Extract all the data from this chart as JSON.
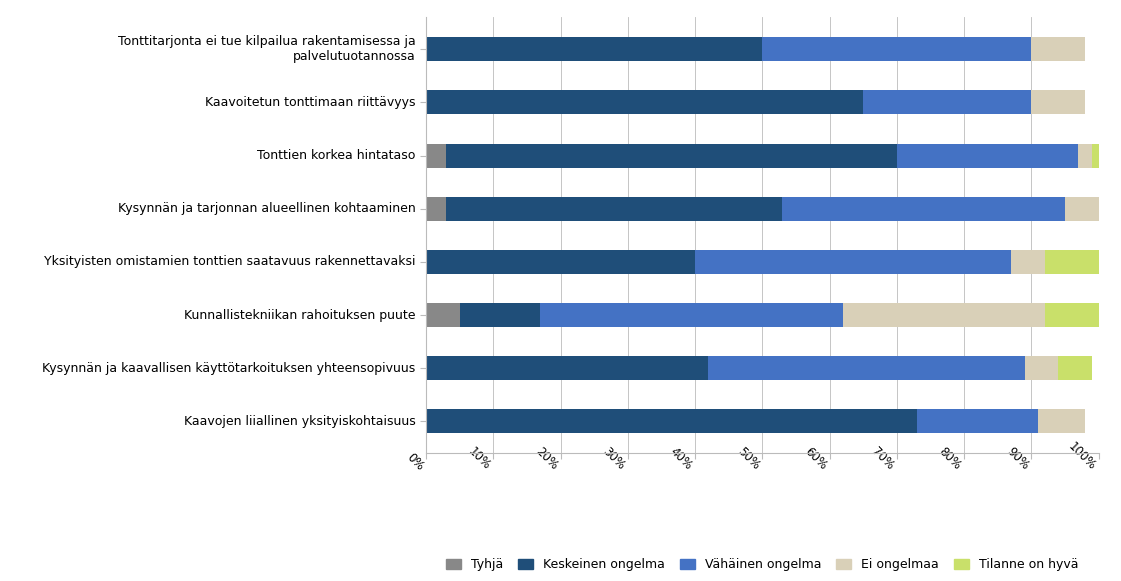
{
  "categories": [
    "Tonttitarjonta ei tue kilpailua rakentamisessa ja\npalvelutuotannossa",
    "Kaavoitetun tonttimaan riittävyys",
    "Tonttien korkea hintataso",
    "Kysynnän ja tarjonnan alueellinen kohtaaminen",
    "Yksityisten omistamien tonttien saatavuus rakennettavaksi",
    "Kunnallistekniikan rahoituksen puute",
    "Kysynnän ja kaavallisen käyttötarkoituksen yhteensopivuus",
    "Kaavojen liiallinen yksityiskohtaisuus"
  ],
  "series": {
    "Tyhjä": [
      0,
      0,
      3,
      3,
      0,
      5,
      0,
      0
    ],
    "Keskeinen ongelma": [
      50,
      65,
      67,
      50,
      40,
      12,
      42,
      73
    ],
    "Vähäinen ongelma": [
      40,
      25,
      27,
      42,
      47,
      45,
      47,
      18
    ],
    "Ei ongelmaa": [
      8,
      8,
      2,
      5,
      5,
      30,
      5,
      7
    ],
    "Tilanne on hyvä": [
      0,
      0,
      1,
      0,
      8,
      8,
      5,
      0
    ]
  },
  "colors": {
    "Tyhjä": "#888888",
    "Keskeinen ongelma": "#1F4E79",
    "Vähäinen ongelma": "#4472C4",
    "Ei ongelmaa": "#D9D0B8",
    "Tilanne on hyvä": "#C9E06A"
  },
  "legend_order": [
    "Tyhjä",
    "Keskeinen ongelma",
    "Vähäinen ongelma",
    "Ei ongelmaa",
    "Tilanne on hyvä"
  ],
  "xlim": [
    0,
    100
  ],
  "xticks": [
    0,
    10,
    20,
    30,
    40,
    50,
    60,
    70,
    80,
    90,
    100
  ],
  "background_color": "#FFFFFF",
  "bar_height": 0.45,
  "tick_rotation": -45,
  "label_fontsize": 9,
  "tick_fontsize": 8.5
}
